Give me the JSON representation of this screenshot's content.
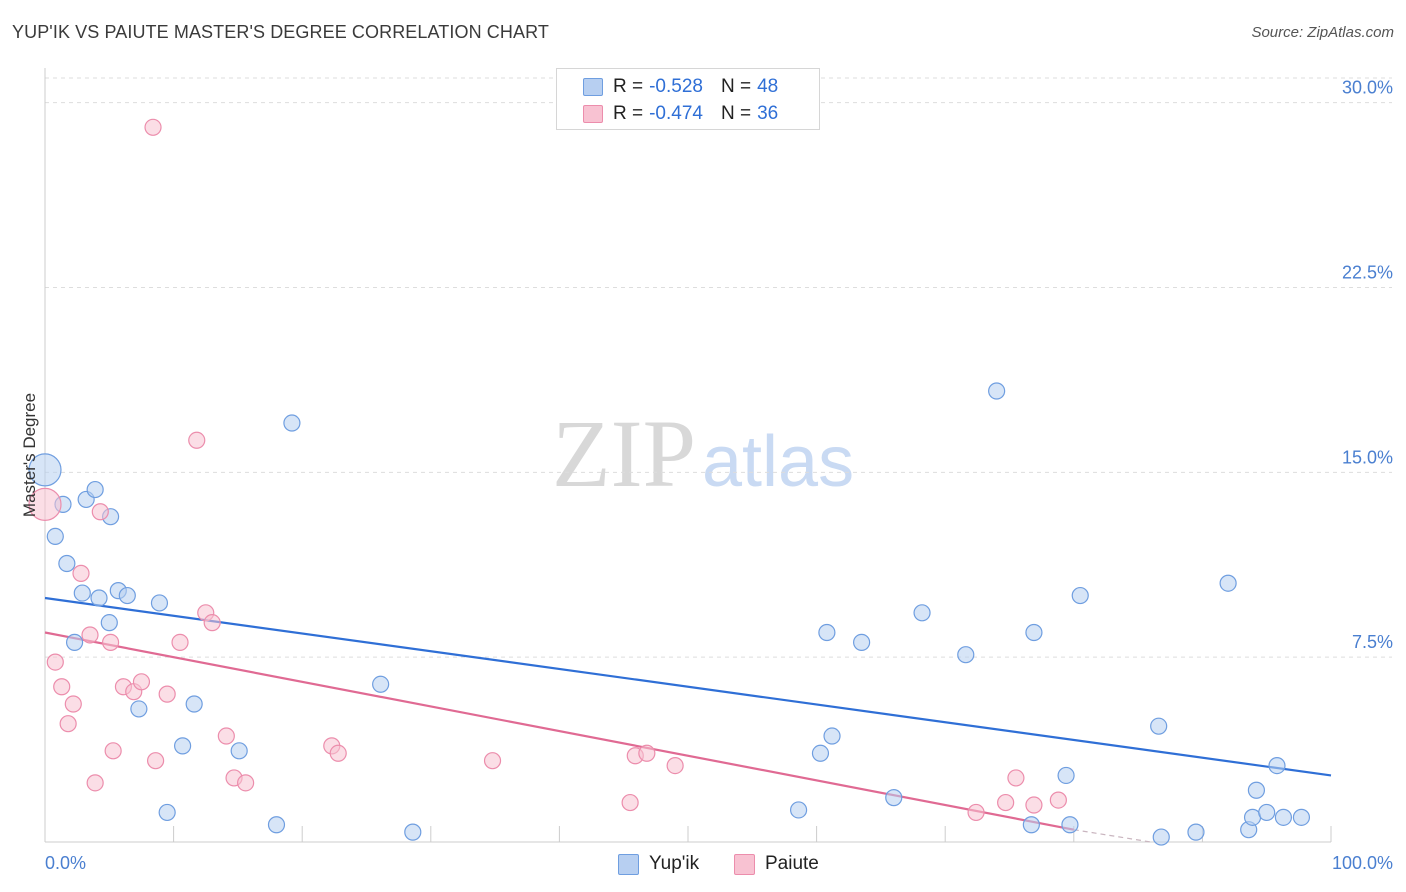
{
  "header": {
    "title": "YUP'IK VS PAIUTE MASTER'S DEGREE CORRELATION CHART",
    "source": "Source: ZipAtlas.com"
  },
  "watermark": {
    "zip": "ZIP",
    "atlas": "atlas"
  },
  "legend": {
    "rows": [
      {
        "r_label": "R =",
        "r_value": "-0.528",
        "n_label": "N =",
        "n_value": "48"
      },
      {
        "r_label": "R =",
        "r_value": "-0.474",
        "n_label": "N =",
        "n_value": "36"
      }
    ],
    "bottom": [
      "Yup'ik",
      "Paiute"
    ]
  },
  "colors": {
    "yupik_fill": "#b7cff1",
    "yupik_stroke": "#6f9ee0",
    "yupik_line": "#2f6fd6",
    "paiute_fill": "#f8c2d2",
    "paiute_stroke": "#ec8dac",
    "paiute_line": "#e06a93",
    "axis_text": "#4a7fd0",
    "grid": "#dddddd"
  },
  "chart_data": {
    "type": "scatter",
    "title": "YUP'IK VS PAIUTE MASTER'S DEGREE CORRELATION CHART",
    "xlabel": "",
    "ylabel": "Master's Degree",
    "xlim": [
      0,
      100
    ],
    "ylim": [
      0,
      31
    ],
    "x_tick_labels": [
      "0.0%",
      "100.0%"
    ],
    "y_ticks": [
      7.5,
      15.0,
      22.5,
      30.0
    ],
    "y_tick_labels": [
      "7.5%",
      "15.0%",
      "22.5%",
      "30.0%"
    ],
    "grid": "horizontal dashed",
    "legend_position": "top-center",
    "series": [
      {
        "name": "Yup'ik",
        "r": -0.528,
        "n": 48,
        "trend": {
          "x": [
            0,
            100
          ],
          "y": [
            9.9,
            2.7
          ]
        },
        "points": [
          [
            0.0,
            15.1
          ],
          [
            0.8,
            12.4
          ],
          [
            1.4,
            13.7
          ],
          [
            1.7,
            11.3
          ],
          [
            2.3,
            8.1
          ],
          [
            2.9,
            10.1
          ],
          [
            3.2,
            13.9
          ],
          [
            3.9,
            14.3
          ],
          [
            4.2,
            9.9
          ],
          [
            5.0,
            8.9
          ],
          [
            5.1,
            13.2
          ],
          [
            5.7,
            10.2
          ],
          [
            6.4,
            10.0
          ],
          [
            7.3,
            5.4
          ],
          [
            8.9,
            9.7
          ],
          [
            9.5,
            1.2
          ],
          [
            10.7,
            3.9
          ],
          [
            11.6,
            5.6
          ],
          [
            15.1,
            3.7
          ],
          [
            18.0,
            0.7
          ],
          [
            19.2,
            17.0
          ],
          [
            26.1,
            6.4
          ],
          [
            28.6,
            0.4
          ],
          [
            58.6,
            1.3
          ],
          [
            60.3,
            3.6
          ],
          [
            60.8,
            8.5
          ],
          [
            61.2,
            4.3
          ],
          [
            63.5,
            8.1
          ],
          [
            66.0,
            1.8
          ],
          [
            68.2,
            9.3
          ],
          [
            71.6,
            7.6
          ],
          [
            74.0,
            18.3
          ],
          [
            76.7,
            0.7
          ],
          [
            76.9,
            8.5
          ],
          [
            79.4,
            2.7
          ],
          [
            79.7,
            0.7
          ],
          [
            80.5,
            10.0
          ],
          [
            86.6,
            4.7
          ],
          [
            86.8,
            0.2
          ],
          [
            89.5,
            0.4
          ],
          [
            92.0,
            10.5
          ],
          [
            93.6,
            0.5
          ],
          [
            93.9,
            1.0
          ],
          [
            94.2,
            2.1
          ],
          [
            95.0,
            1.2
          ],
          [
            95.8,
            3.1
          ],
          [
            96.3,
            1.0
          ],
          [
            97.7,
            1.0
          ]
        ]
      },
      {
        "name": "Paiute",
        "r": -0.474,
        "n": 36,
        "trend": {
          "x": [
            0,
            80
          ],
          "y": [
            8.5,
            0.5
          ]
        },
        "trend_dashed_extension": {
          "x": [
            80,
            86
          ],
          "y": [
            0.5,
            -0.1
          ]
        },
        "points": [
          [
            0.0,
            13.7
          ],
          [
            0.8,
            7.3
          ],
          [
            1.3,
            6.3
          ],
          [
            1.8,
            4.8
          ],
          [
            2.2,
            5.6
          ],
          [
            2.8,
            10.9
          ],
          [
            3.5,
            8.4
          ],
          [
            3.9,
            2.4
          ],
          [
            4.3,
            13.4
          ],
          [
            5.1,
            8.1
          ],
          [
            5.3,
            3.7
          ],
          [
            6.1,
            6.3
          ],
          [
            6.9,
            6.1
          ],
          [
            7.5,
            6.5
          ],
          [
            8.4,
            29.0
          ],
          [
            8.6,
            3.3
          ],
          [
            9.5,
            6.0
          ],
          [
            10.5,
            8.1
          ],
          [
            11.8,
            16.3
          ],
          [
            12.5,
            9.3
          ],
          [
            13.0,
            8.9
          ],
          [
            14.1,
            4.3
          ],
          [
            14.7,
            2.6
          ],
          [
            15.6,
            2.4
          ],
          [
            22.3,
            3.9
          ],
          [
            22.8,
            3.6
          ],
          [
            34.8,
            3.3
          ],
          [
            45.5,
            1.6
          ],
          [
            45.9,
            3.5
          ],
          [
            46.8,
            3.6
          ],
          [
            49.0,
            3.1
          ],
          [
            72.4,
            1.2
          ],
          [
            74.7,
            1.6
          ],
          [
            75.5,
            2.6
          ],
          [
            76.9,
            1.5
          ],
          [
            78.8,
            1.7
          ]
        ]
      }
    ]
  }
}
